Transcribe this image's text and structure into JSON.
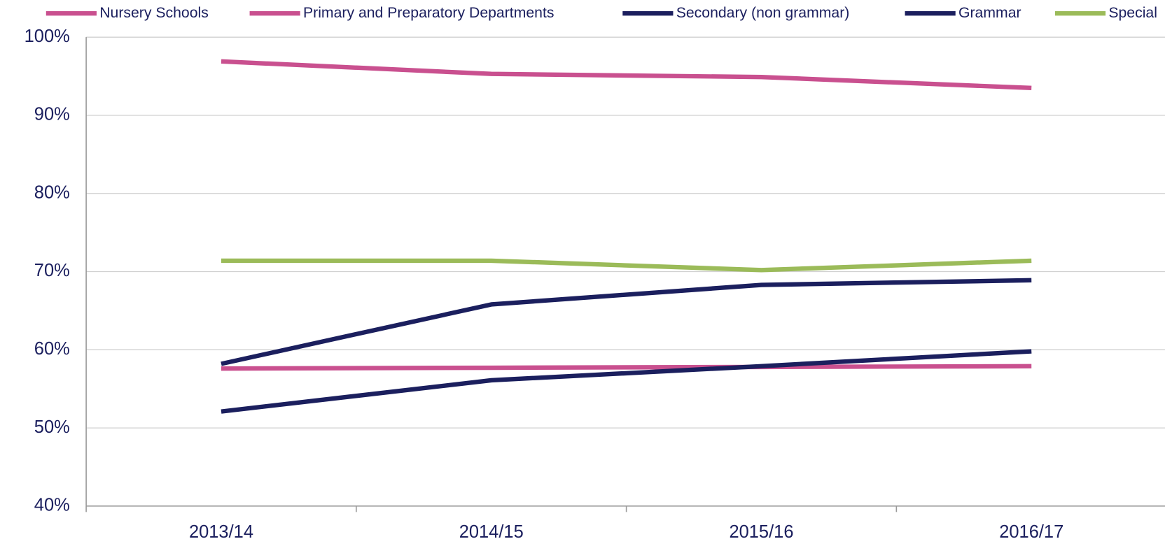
{
  "chart_data": {
    "type": "line",
    "categories": [
      "2013/14",
      "2014/15",
      "2015/16",
      "2016/17"
    ],
    "series": [
      {
        "name": "Nursery Schools",
        "color": "#c9508f",
        "values": [
          96.9,
          95.3,
          94.9,
          93.5
        ]
      },
      {
        "name": "Primary and Preparatory Departments",
        "color": "#c9508f",
        "values": [
          57.6,
          57.7,
          57.8,
          57.9
        ]
      },
      {
        "name": "Secondary (non grammar)",
        "color": "#1b1f5e",
        "values": [
          58.2,
          65.8,
          68.3,
          68.9
        ]
      },
      {
        "name": "Grammar",
        "color": "#1b1f5e",
        "values": [
          52.1,
          56.1,
          57.9,
          59.8
        ]
      },
      {
        "name": "Special",
        "color": "#9bbb59",
        "values": [
          71.4,
          71.4,
          70.2,
          71.4
        ]
      }
    ],
    "ylim": [
      40,
      100
    ],
    "yticks": [
      {
        "value": 40,
        "label": "40%"
      },
      {
        "value": 50,
        "label": "50%"
      },
      {
        "value": 60,
        "label": "60%"
      },
      {
        "value": 70,
        "label": "70%"
      },
      {
        "value": 80,
        "label": "80%"
      },
      {
        "value": 90,
        "label": "90%"
      },
      {
        "value": 100,
        "label": "100%"
      }
    ],
    "grid": true,
    "legend": "top"
  }
}
